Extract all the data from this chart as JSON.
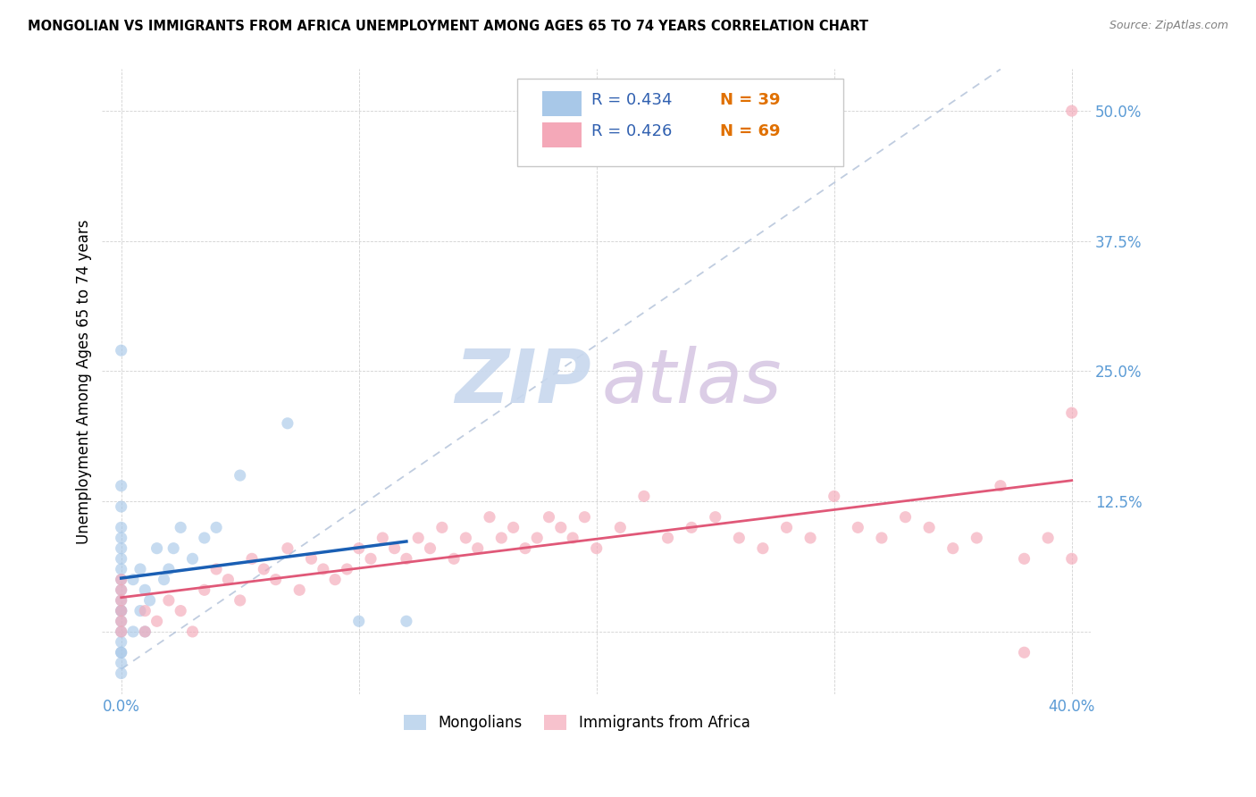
{
  "title": "MONGOLIAN VS IMMIGRANTS FROM AFRICA UNEMPLOYMENT AMONG AGES 65 TO 74 YEARS CORRELATION CHART",
  "source": "Source: ZipAtlas.com",
  "tick_color": "#5b9bd5",
  "ylabel": "Unemployment Among Ages 65 to 74 years",
  "xlim": [
    -0.008,
    0.408
  ],
  "ylim": [
    -0.06,
    0.54
  ],
  "mongolian_color": "#a8c8e8",
  "africa_color": "#f4a8b8",
  "mongolian_line_color": "#1a5fb4",
  "africa_line_color": "#e05878",
  "diag_line_color": "#b0c0d8",
  "watermark_zip_color": "#c8d8ee",
  "watermark_atlas_color": "#d8c8e4",
  "legend_color": "#3060b0",
  "legend_R_mongolian": "0.434",
  "legend_N_mongolian": "39",
  "legend_R_africa": "0.426",
  "legend_N_africa": "69",
  "mongolian_x": [
    0.0,
    0.0,
    0.0,
    0.0,
    0.0,
    0.0,
    0.0,
    0.0,
    0.0,
    0.0,
    0.0,
    0.0,
    0.0,
    0.0,
    0.0,
    0.0,
    0.0,
    0.0,
    0.0,
    0.0,
    0.005,
    0.005,
    0.008,
    0.008,
    0.01,
    0.01,
    0.012,
    0.015,
    0.018,
    0.02,
    0.022,
    0.025,
    0.03,
    0.035,
    0.04,
    0.05,
    0.07,
    0.1,
    0.12
  ],
  "mongolian_y": [
    0.0,
    0.01,
    0.02,
    0.03,
    0.04,
    0.05,
    0.06,
    0.07,
    0.08,
    0.09,
    0.1,
    0.12,
    0.14,
    -0.01,
    -0.02,
    -0.03,
    -0.04,
    -0.02,
    0.02,
    0.27,
    0.0,
    0.05,
    0.02,
    0.06,
    0.0,
    0.04,
    0.03,
    0.08,
    0.05,
    0.06,
    0.08,
    0.1,
    0.07,
    0.09,
    0.1,
    0.15,
    0.2,
    0.01,
    0.01
  ],
  "africa_x": [
    0.0,
    0.0,
    0.0,
    0.0,
    0.0,
    0.0,
    0.01,
    0.01,
    0.015,
    0.02,
    0.025,
    0.03,
    0.035,
    0.04,
    0.045,
    0.05,
    0.055,
    0.06,
    0.065,
    0.07,
    0.075,
    0.08,
    0.085,
    0.09,
    0.095,
    0.1,
    0.105,
    0.11,
    0.115,
    0.12,
    0.125,
    0.13,
    0.135,
    0.14,
    0.145,
    0.15,
    0.155,
    0.16,
    0.165,
    0.17,
    0.175,
    0.18,
    0.185,
    0.19,
    0.195,
    0.2,
    0.21,
    0.22,
    0.23,
    0.24,
    0.25,
    0.26,
    0.27,
    0.28,
    0.29,
    0.3,
    0.31,
    0.32,
    0.33,
    0.34,
    0.35,
    0.36,
    0.37,
    0.38,
    0.38,
    0.39,
    0.4,
    0.4,
    0.4
  ],
  "africa_y": [
    0.0,
    0.01,
    0.02,
    0.03,
    0.04,
    0.05,
    0.0,
    0.02,
    0.01,
    0.03,
    0.02,
    0.0,
    0.04,
    0.06,
    0.05,
    0.03,
    0.07,
    0.06,
    0.05,
    0.08,
    0.04,
    0.07,
    0.06,
    0.05,
    0.06,
    0.08,
    0.07,
    0.09,
    0.08,
    0.07,
    0.09,
    0.08,
    0.1,
    0.07,
    0.09,
    0.08,
    0.11,
    0.09,
    0.1,
    0.08,
    0.09,
    0.11,
    0.1,
    0.09,
    0.11,
    0.08,
    0.1,
    0.13,
    0.09,
    0.1,
    0.11,
    0.09,
    0.08,
    0.1,
    0.09,
    0.13,
    0.1,
    0.09,
    0.11,
    0.1,
    0.08,
    0.09,
    0.14,
    0.07,
    -0.02,
    0.09,
    0.07,
    0.5,
    0.21
  ]
}
